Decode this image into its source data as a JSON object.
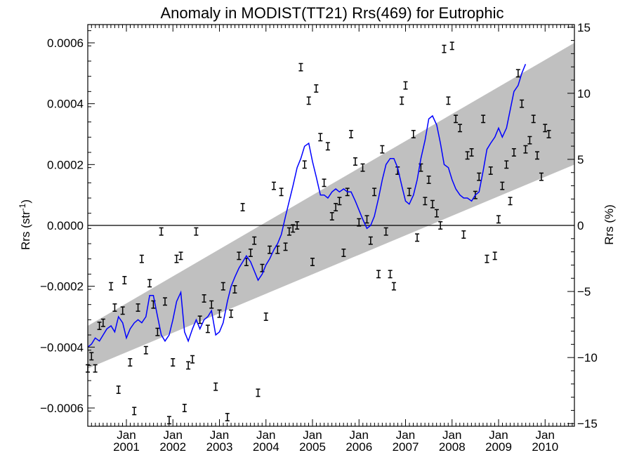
{
  "chart_data": {
    "type": "line",
    "title": "Anomaly in MODIST(TT21) Rrs(469) for Eutrophic",
    "ylabel_left_text": "Rrs (str",
    "ylabel_left_sup": "-1",
    "ylabel_left_close": ")",
    "ylabel_right": "Rrs (%)",
    "xlim": [
      2000.17,
      2010.63
    ],
    "ylim": [
      -0.00066,
      0.00066
    ],
    "y2lim": [
      -15.2,
      15.2
    ],
    "y_ticks": [
      -0.0006,
      -0.0004,
      -0.0002,
      0.0,
      0.0002,
      0.0004,
      0.0006
    ],
    "y_tick_labels": [
      "−0.0006",
      "−0.0004",
      "−0.0002",
      "0.0000",
      "0.0002",
      "0.0004",
      "0.0006"
    ],
    "y2_ticks": [
      -15,
      -10,
      -5,
      0,
      5,
      10,
      15
    ],
    "y2_tick_labels": [
      "−15",
      "−10",
      "−5",
      "0",
      "5",
      "10",
      "15"
    ],
    "x_ticks": [
      {
        "x": 2001.0,
        "month": "Jan",
        "year": "2001"
      },
      {
        "x": 2002.0,
        "month": "Jan",
        "year": "2002"
      },
      {
        "x": 2003.0,
        "month": "Jan",
        "year": "2003"
      },
      {
        "x": 2004.0,
        "month": "Jan",
        "year": "2004"
      },
      {
        "x": 2005.0,
        "month": "Jan",
        "year": "2005"
      },
      {
        "x": 2006.0,
        "month": "Jan",
        "year": "2006"
      },
      {
        "x": 2007.0,
        "month": "Jan",
        "year": "2007"
      },
      {
        "x": 2008.0,
        "month": "Jan",
        "year": "2008"
      },
      {
        "x": 2009.0,
        "month": "Jan",
        "year": "2009"
      },
      {
        "x": 2010.0,
        "month": "Jan",
        "year": "2010"
      }
    ],
    "band": {
      "color": "#c0c0c0",
      "lower": [
        [
          2000.17,
          -0.00047
        ],
        [
          2010.63,
          0.0002
        ]
      ],
      "upper": [
        [
          2000.17,
          -0.00033
        ],
        [
          2010.63,
          0.0006
        ]
      ]
    },
    "zero_line": 0.0,
    "points_error_bar_half": 1.2e-05,
    "points": [
      [
        2000.17,
        -0.00047
      ],
      [
        2000.25,
        -0.00043
      ],
      [
        2000.33,
        -0.00047
      ],
      [
        2000.42,
        -0.00033
      ],
      [
        2000.5,
        -0.00032
      ],
      [
        2000.67,
        -0.0002
      ],
      [
        2000.75,
        -0.00027
      ],
      [
        2000.83,
        -0.00054
      ],
      [
        2000.92,
        -0.00028
      ],
      [
        2000.96,
        -0.00018
      ],
      [
        2001.08,
        -0.00045
      ],
      [
        2001.17,
        -0.00061
      ],
      [
        2001.25,
        -0.00027
      ],
      [
        2001.33,
        -0.00011
      ],
      [
        2001.42,
        -0.00041
      ],
      [
        2001.5,
        -0.00019
      ],
      [
        2001.58,
        -0.00026
      ],
      [
        2001.67,
        -0.00035
      ],
      [
        2001.75,
        -2e-05
      ],
      [
        2001.83,
        -0.00025
      ],
      [
        2001.92,
        -0.00064
      ],
      [
        2002.0,
        -0.00045
      ],
      [
        2002.08,
        -0.00011
      ],
      [
        2002.17,
        -0.0001
      ],
      [
        2002.25,
        -0.0006
      ],
      [
        2002.33,
        -0.00046
      ],
      [
        2002.42,
        -0.00044
      ],
      [
        2002.5,
        -2e-05
      ],
      [
        2002.58,
        -0.00031
      ],
      [
        2002.67,
        -0.00024
      ],
      [
        2002.75,
        -0.00034
      ],
      [
        2002.83,
        -0.00026
      ],
      [
        2002.92,
        -0.00053
      ],
      [
        2003.0,
        -0.00029
      ],
      [
        2003.08,
        -0.0002
      ],
      [
        2003.17,
        -0.00063
      ],
      [
        2003.25,
        -0.00029
      ],
      [
        2003.33,
        -0.00021
      ],
      [
        2003.42,
        -0.0001
      ],
      [
        2003.5,
        6e-05
      ],
      [
        2003.58,
        -0.00012
      ],
      [
        2003.67,
        -9e-05
      ],
      [
        2003.75,
        -5e-05
      ],
      [
        2003.83,
        -0.00055
      ],
      [
        2003.92,
        -0.00014
      ],
      [
        2004.0,
        -0.0003
      ],
      [
        2004.08,
        -8e-05
      ],
      [
        2004.17,
        0.00013
      ],
      [
        2004.25,
        -8e-05
      ],
      [
        2004.33,
        0.00011
      ],
      [
        2004.42,
        -7e-05
      ],
      [
        2004.5,
        -2e-05
      ],
      [
        2004.58,
        -1e-05
      ],
      [
        2004.67,
        0.0
      ],
      [
        2004.75,
        0.00052
      ],
      [
        2004.83,
        0.0002
      ],
      [
        2004.92,
        0.00041
      ],
      [
        2005.0,
        -0.00012
      ],
      [
        2005.08,
        0.00045
      ],
      [
        2005.17,
        0.00029
      ],
      [
        2005.25,
        0.00014
      ],
      [
        2005.33,
        0.00026
      ],
      [
        2005.42,
        3e-05
      ],
      [
        2005.5,
        6e-05
      ],
      [
        2005.58,
        8e-05
      ],
      [
        2005.67,
        -9e-05
      ],
      [
        2005.75,
        0.00011
      ],
      [
        2005.83,
        0.0003
      ],
      [
        2005.92,
        0.00021
      ],
      [
        2006.0,
        1e-05
      ],
      [
        2006.08,
        0.00019
      ],
      [
        2006.17,
        2e-05
      ],
      [
        2006.25,
        -5e-05
      ],
      [
        2006.33,
        0.00011
      ],
      [
        2006.42,
        -0.00016
      ],
      [
        2006.5,
        0.00025
      ],
      [
        2006.58,
        -2e-05
      ],
      [
        2006.67,
        -0.00016
      ],
      [
        2006.75,
        -0.0002
      ],
      [
        2006.83,
        0.00018
      ],
      [
        2006.92,
        0.00041
      ],
      [
        2007.0,
        0.00046
      ],
      [
        2007.08,
        0.00011
      ],
      [
        2007.17,
        0.0003
      ],
      [
        2007.25,
        -4e-05
      ],
      [
        2007.33,
        0.00019
      ],
      [
        2007.42,
        8e-05
      ],
      [
        2007.5,
        0.00015
      ],
      [
        2007.58,
        7e-05
      ],
      [
        2007.67,
        4e-05
      ],
      [
        2007.75,
        0.0
      ],
      [
        2007.83,
        0.00058
      ],
      [
        2007.92,
        0.00041
      ],
      [
        2008.0,
        0.00059
      ],
      [
        2008.08,
        0.00035
      ],
      [
        2008.17,
        0.00032
      ],
      [
        2008.25,
        -3e-05
      ],
      [
        2008.33,
        0.00023
      ],
      [
        2008.42,
        0.00024
      ],
      [
        2008.5,
        0.0001
      ],
      [
        2008.58,
        0.00016
      ],
      [
        2008.67,
        0.00035
      ],
      [
        2008.75,
        -0.00011
      ],
      [
        2008.83,
        0.00018
      ],
      [
        2008.92,
        -0.0001
      ],
      [
        2009.0,
        2e-05
      ],
      [
        2009.08,
        0.00013
      ],
      [
        2009.17,
        0.0002
      ],
      [
        2009.25,
        8e-05
      ],
      [
        2009.33,
        0.00024
      ],
      [
        2009.42,
        0.0005
      ],
      [
        2009.5,
        0.0004
      ],
      [
        2009.58,
        0.00025
      ],
      [
        2009.67,
        0.00028
      ],
      [
        2009.75,
        0.00035
      ],
      [
        2009.83,
        0.00023
      ],
      [
        2009.92,
        0.00016
      ],
      [
        2010.0,
        0.00032
      ],
      [
        2010.08,
        0.0003
      ]
    ],
    "line_color": "#0000ff",
    "line": [
      [
        2000.17,
        -0.0004
      ],
      [
        2000.25,
        -0.00039
      ],
      [
        2000.33,
        -0.00037
      ],
      [
        2000.42,
        -0.00038
      ],
      [
        2000.5,
        -0.00036
      ],
      [
        2000.58,
        -0.00034
      ],
      [
        2000.67,
        -0.00033
      ],
      [
        2000.75,
        -0.00035
      ],
      [
        2000.83,
        -0.0003
      ],
      [
        2000.92,
        -0.00032
      ],
      [
        2001.0,
        -0.00037
      ],
      [
        2001.08,
        -0.00034
      ],
      [
        2001.17,
        -0.00032
      ],
      [
        2001.25,
        -0.00031
      ],
      [
        2001.33,
        -0.00032
      ],
      [
        2001.42,
        -0.0003
      ],
      [
        2001.5,
        -0.00023
      ],
      [
        2001.58,
        -0.00023
      ],
      [
        2001.67,
        -0.0003
      ],
      [
        2001.75,
        -0.00036
      ],
      [
        2001.83,
        -0.00038
      ],
      [
        2001.92,
        -0.00036
      ],
      [
        2002.0,
        -0.00031
      ],
      [
        2002.08,
        -0.00025
      ],
      [
        2002.17,
        -0.00022
      ],
      [
        2002.25,
        -0.00035
      ],
      [
        2002.33,
        -0.00038
      ],
      [
        2002.42,
        -0.00034
      ],
      [
        2002.5,
        -0.00031
      ],
      [
        2002.58,
        -0.00034
      ],
      [
        2002.67,
        -0.00031
      ],
      [
        2002.75,
        -0.0003
      ],
      [
        2002.83,
        -0.00028
      ],
      [
        2002.92,
        -0.00036
      ],
      [
        2003.0,
        -0.00035
      ],
      [
        2003.08,
        -0.00032
      ],
      [
        2003.17,
        -0.00025
      ],
      [
        2003.25,
        -0.0002
      ],
      [
        2003.33,
        -0.00017
      ],
      [
        2003.42,
        -0.00014
      ],
      [
        2003.5,
        -0.00012
      ],
      [
        2003.58,
        -0.0001
      ],
      [
        2003.67,
        -0.00012
      ],
      [
        2003.75,
        -0.00015
      ],
      [
        2003.83,
        -0.00018
      ],
      [
        2003.92,
        -0.00016
      ],
      [
        2004.0,
        -0.00013
      ],
      [
        2004.08,
        -0.00011
      ],
      [
        2004.17,
        -8e-05
      ],
      [
        2004.25,
        -6e-05
      ],
      [
        2004.33,
        -3e-05
      ],
      [
        2004.42,
        3e-05
      ],
      [
        2004.5,
        8e-05
      ],
      [
        2004.58,
        0.00013
      ],
      [
        2004.67,
        0.00019
      ],
      [
        2004.75,
        0.00022
      ],
      [
        2004.83,
        0.00026
      ],
      [
        2004.92,
        0.00027
      ],
      [
        2005.0,
        0.00021
      ],
      [
        2005.08,
        0.00016
      ],
      [
        2005.17,
        0.0001
      ],
      [
        2005.25,
        0.0001
      ],
      [
        2005.33,
        9e-05
      ],
      [
        2005.42,
        0.00011
      ],
      [
        2005.5,
        0.00012
      ],
      [
        2005.58,
        0.00011
      ],
      [
        2005.67,
        0.00012
      ],
      [
        2005.75,
        0.00011
      ],
      [
        2005.83,
        0.00011
      ],
      [
        2005.92,
        8e-05
      ],
      [
        2006.0,
        5e-05
      ],
      [
        2006.08,
        2e-05
      ],
      [
        2006.17,
        -1e-05
      ],
      [
        2006.25,
        0.0
      ],
      [
        2006.33,
        3e-05
      ],
      [
        2006.42,
        9e-05
      ],
      [
        2006.5,
        0.00015
      ],
      [
        2006.58,
        0.0002
      ],
      [
        2006.67,
        0.00022
      ],
      [
        2006.75,
        0.00022
      ],
      [
        2006.83,
        0.00019
      ],
      [
        2006.92,
        0.00013
      ],
      [
        2007.0,
        8e-05
      ],
      [
        2007.08,
        7e-05
      ],
      [
        2007.17,
        0.0001
      ],
      [
        2007.25,
        0.00015
      ],
      [
        2007.33,
        0.00022
      ],
      [
        2007.42,
        0.00028
      ],
      [
        2007.5,
        0.00035
      ],
      [
        2007.58,
        0.00036
      ],
      [
        2007.67,
        0.00033
      ],
      [
        2007.75,
        0.00027
      ],
      [
        2007.83,
        0.0002
      ],
      [
        2007.92,
        0.00019
      ],
      [
        2008.0,
        0.00015
      ],
      [
        2008.08,
        0.00012
      ],
      [
        2008.17,
        0.0001
      ],
      [
        2008.25,
        9e-05
      ],
      [
        2008.33,
        9e-05
      ],
      [
        2008.42,
        8e-05
      ],
      [
        2008.5,
        0.0001
      ],
      [
        2008.58,
        0.00011
      ],
      [
        2008.67,
        0.00018
      ],
      [
        2008.75,
        0.00025
      ],
      [
        2008.83,
        0.00027
      ],
      [
        2008.92,
        0.00029
      ],
      [
        2009.0,
        0.00032
      ],
      [
        2009.08,
        0.00029
      ],
      [
        2009.17,
        0.00032
      ],
      [
        2009.25,
        0.00038
      ],
      [
        2009.33,
        0.00044
      ],
      [
        2009.42,
        0.00046
      ],
      [
        2009.5,
        0.0005
      ],
      [
        2009.58,
        0.00053
      ]
    ]
  }
}
